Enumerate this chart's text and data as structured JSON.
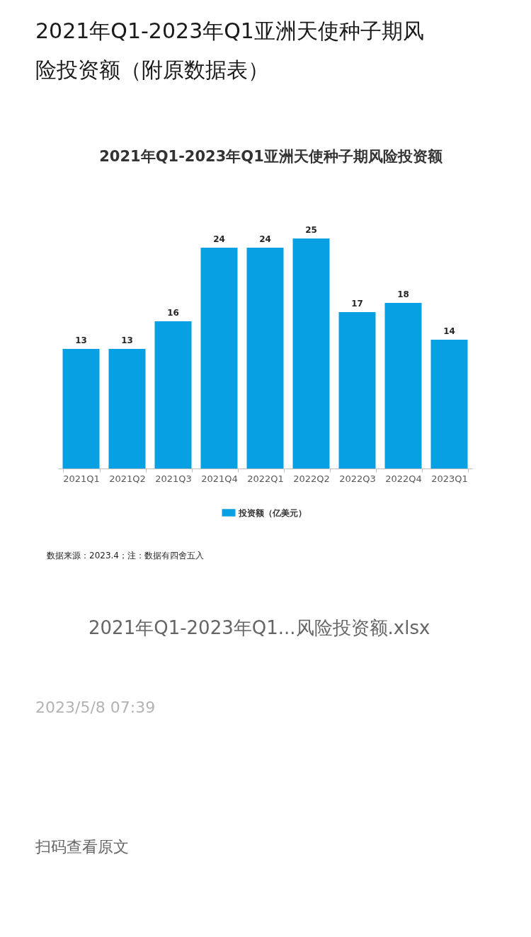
{
  "chart_data": {
    "type": "bar",
    "title": "2021年Q1-2023年Q1亚洲天使种子期风险投资额（附原数据表）",
    "subtitle": "2021年Q1-2023年Q1亚洲天使种子期风险投资额",
    "categories": [
      "2021Q1",
      "2021Q2",
      "2021Q3",
      "2021Q4",
      "2022Q1",
      "2022Q2",
      "2022Q3",
      "2022Q4",
      "2023Q1"
    ],
    "series": [
      {
        "name": "投资额（亿美元）",
        "color": "#06a0e3",
        "values": [
          13,
          13,
          16,
          24,
          24,
          25,
          17,
          18,
          14
        ]
      }
    ],
    "data_labels": true,
    "legend": "bottom",
    "tick_labels": "x",
    "annotations": [
      "数据来源：2023.4；注：数据有四舍五入",
      "2021年Q1-2023年Q1...风险投资额.xlsx",
      "2023/5/8 07:39",
      "扫码查看原文"
    ]
  }
}
